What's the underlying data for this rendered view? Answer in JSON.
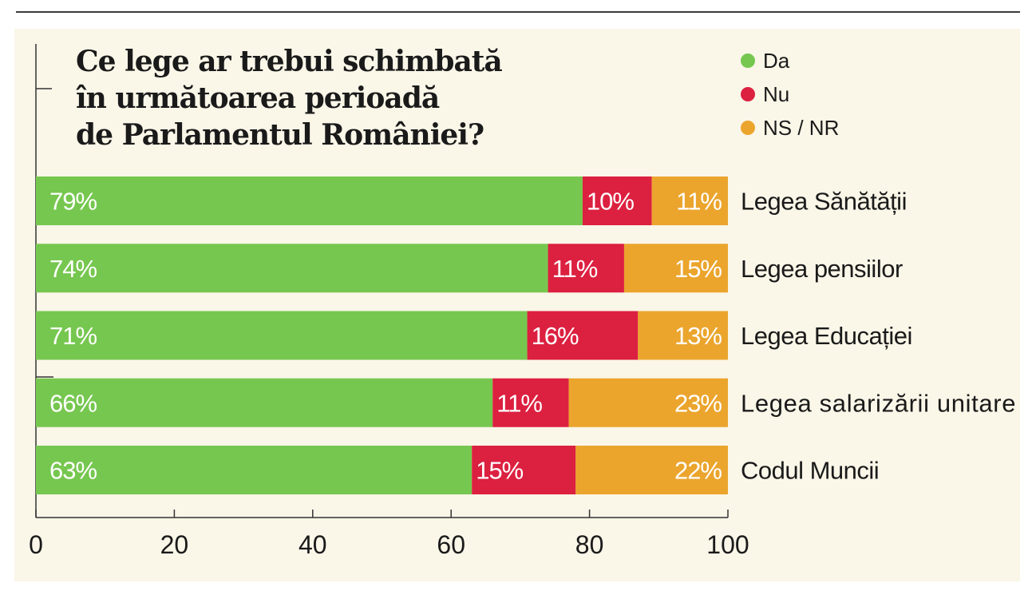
{
  "chart_data": {
    "type": "bar",
    "orientation": "horizontal",
    "stacked": true,
    "title_lines": [
      "Ce lege ar trebui schimbată",
      "în următoarea perioadă",
      "de Parlamentul României?"
    ],
    "categories": [
      "Legea Sănătății",
      "Legea pensiilor",
      "Legea Educației",
      "Legea salarizării unitare",
      "Codul Muncii"
    ],
    "series": [
      {
        "name": "Da",
        "color": "#76c74f",
        "values": [
          79,
          74,
          71,
          66,
          63
        ],
        "labels": [
          "79%",
          "74%",
          "71%",
          "66%",
          "63%"
        ]
      },
      {
        "name": "Nu",
        "color": "#dc2040",
        "values": [
          10,
          11,
          16,
          11,
          15
        ],
        "labels": [
          "10%",
          "11%",
          "16%",
          "11%",
          "15%"
        ]
      },
      {
        "name": "NS / NR",
        "color": "#eba52d",
        "values": [
          11,
          15,
          13,
          23,
          22
        ],
        "labels": [
          "11%",
          "15%",
          "13%",
          "23%",
          "22%"
        ]
      }
    ],
    "xlim": [
      0,
      100
    ],
    "xticks": [
      0,
      20,
      40,
      60,
      80,
      100
    ],
    "xtick_labels": [
      "0",
      "20",
      "40",
      "60",
      "80",
      "100"
    ],
    "legend_position": "top-right",
    "grid": false
  }
}
